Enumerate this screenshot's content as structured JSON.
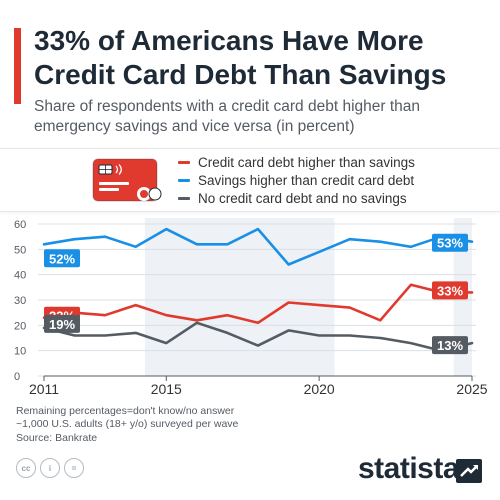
{
  "colors": {
    "accent": "#e03a2f",
    "debt": "#e03a2f",
    "savings": "#1a8fe6",
    "none": "#555b63",
    "shade": "#eef1f6",
    "grid": "#dcdfe4",
    "brand": "#1f2a37"
  },
  "title": "33% of Americans Have More Credit Card Debt Than Savings",
  "subtitle": "Share of respondents with a credit card debt higher than emergency savings and vice versa (in percent)",
  "legend": {
    "icon": "credit-card-icon",
    "items": [
      {
        "label": "Credit card debt higher than savings",
        "color": "#e03a2f"
      },
      {
        "label": "Savings higher than credit card debt",
        "color": "#1a8fe6"
      },
      {
        "label": "No credit card debt and no savings",
        "color": "#555b63"
      }
    ]
  },
  "chart_data": {
    "type": "line",
    "x": [
      2011,
      2012,
      2013,
      2014,
      2015,
      2016,
      2017,
      2018,
      2019,
      2020,
      2021,
      2022,
      2023,
      2024,
      2025
    ],
    "xlim": [
      2011,
      2025
    ],
    "xticks": [
      2011,
      2015,
      2020,
      2025
    ],
    "ylim": [
      0,
      60
    ],
    "yticks": [
      0,
      10,
      20,
      30,
      40,
      50,
      60
    ],
    "grid": true,
    "shaded_ranges": [
      [
        2014.3,
        2020.5
      ],
      [
        2024.4,
        2025
      ]
    ],
    "series": [
      {
        "name": "Savings higher than credit card debt",
        "color": "#1a8fe6",
        "values": [
          52,
          54,
          55,
          51,
          58,
          52,
          52,
          58,
          44,
          49,
          54,
          53,
          51,
          55,
          53
        ],
        "start_label": "52%",
        "end_label": "53%"
      },
      {
        "name": "Credit card debt higher than savings",
        "color": "#e03a2f",
        "values": [
          23,
          25,
          24,
          28,
          24,
          22,
          24,
          21,
          29,
          28,
          27,
          22,
          36,
          33,
          33
        ],
        "start_label": "23%",
        "end_label": "33%"
      },
      {
        "name": "No credit card debt and no savings",
        "color": "#555b63",
        "values": [
          19,
          16,
          16,
          17,
          13,
          21,
          17,
          12,
          18,
          16,
          16,
          15,
          13,
          10,
          13
        ],
        "start_label": "19%",
        "end_label": "13%"
      }
    ]
  },
  "notes": [
    "Remaining percentages=don't know/no answer",
    "~1,000 U.S. adults (18+ y/o) surveyed per wave",
    "Source: Bankrate"
  ],
  "footer": {
    "license_icons": [
      "cc-icon",
      "by-icon",
      "nd-icon"
    ],
    "license_text": [
      "cc",
      "i",
      "="
    ],
    "brand": "statista",
    "brand_icon": "statista-arrow-icon"
  }
}
